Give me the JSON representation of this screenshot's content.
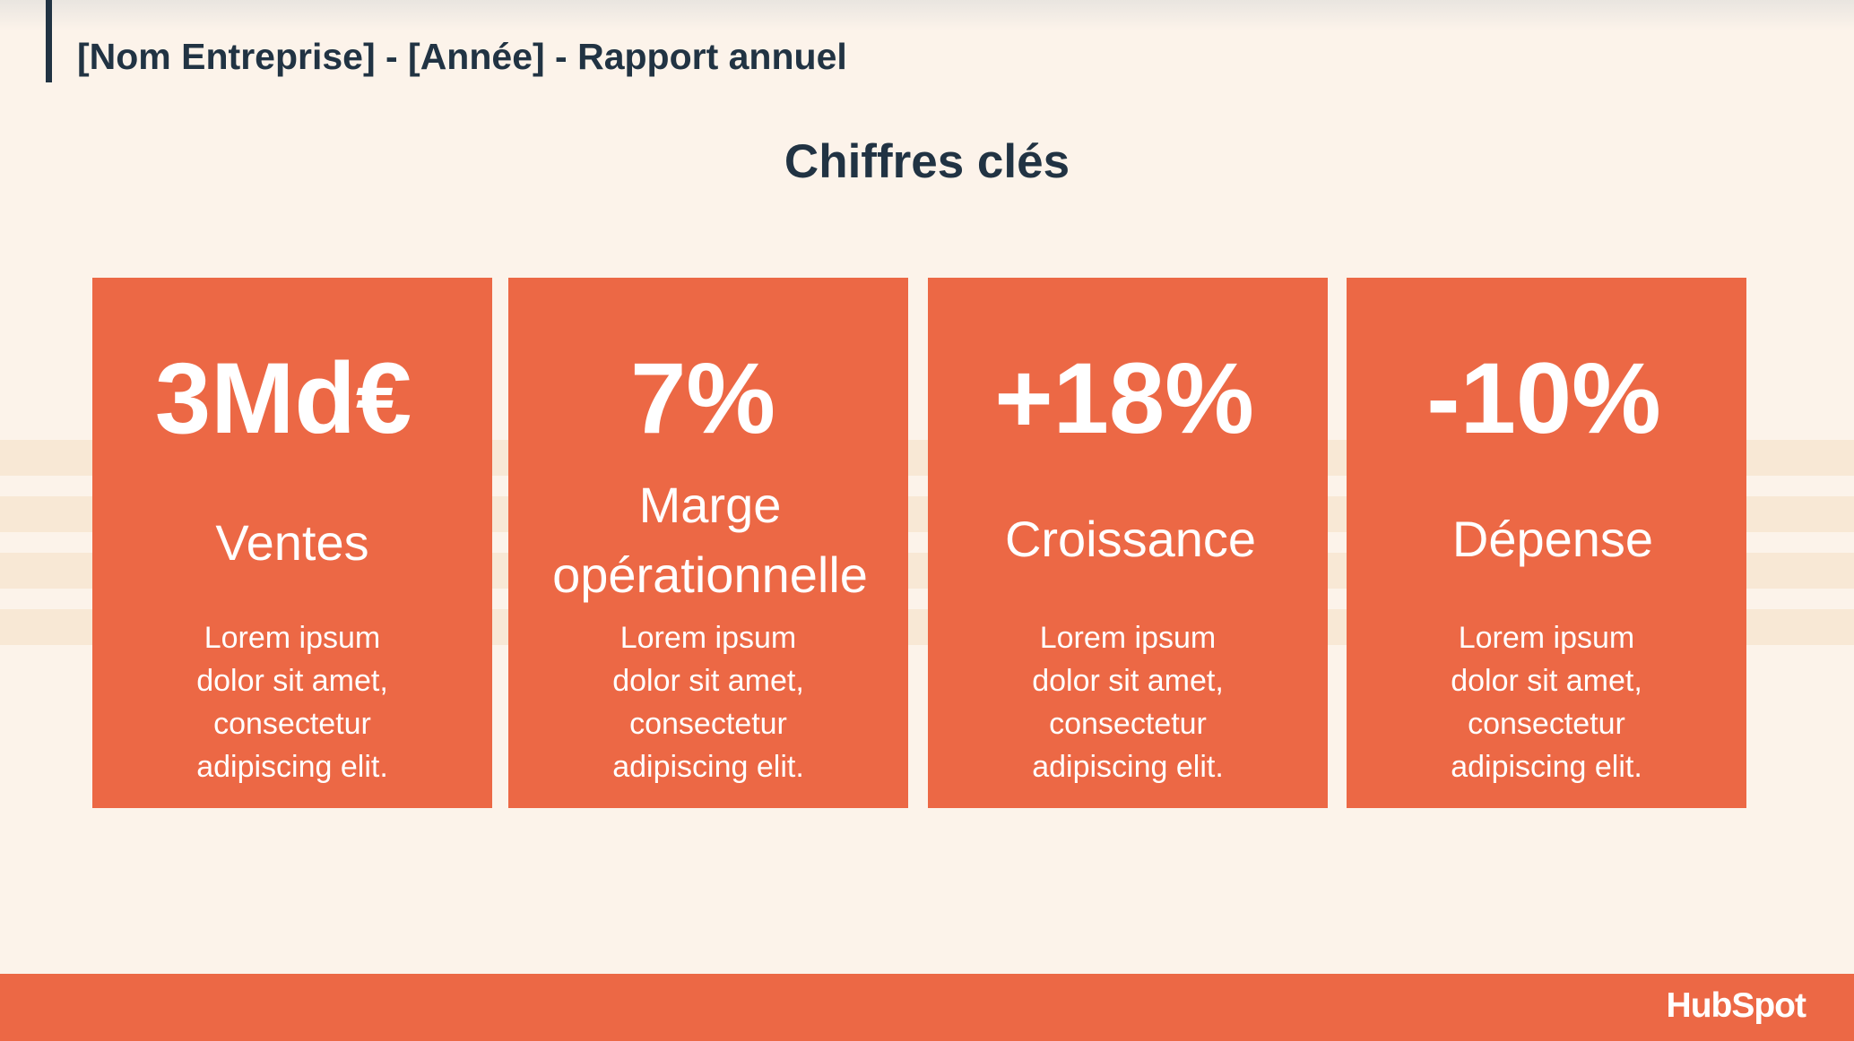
{
  "header": {
    "title": "[Nom Entreprise] - [Année] - Rapport annuel"
  },
  "section": {
    "title": "Chiffres clés"
  },
  "cards": [
    {
      "value": "3Md€",
      "label": "Ventes",
      "description": "Lorem ipsum dolor sit amet, consectetur adipiscing elit."
    },
    {
      "value": "7%",
      "label": "Marge opérationnelle",
      "description": "Lorem ipsum dolor sit amet, consectetur adipiscing elit."
    },
    {
      "value": "+18%",
      "label": "Croissance",
      "description": "Lorem ipsum dolor sit amet, consectetur adipiscing elit."
    },
    {
      "value": "-10%",
      "label": "Dépense",
      "description": "Lorem ipsum dolor sit amet, consectetur adipiscing elit."
    }
  ],
  "footer": {
    "logo_text": "HubSpot"
  },
  "colors": {
    "background": "#fcf3ea",
    "accent": "#ec6845",
    "text_dark": "#213343",
    "stripe": "#f8e8d5"
  }
}
